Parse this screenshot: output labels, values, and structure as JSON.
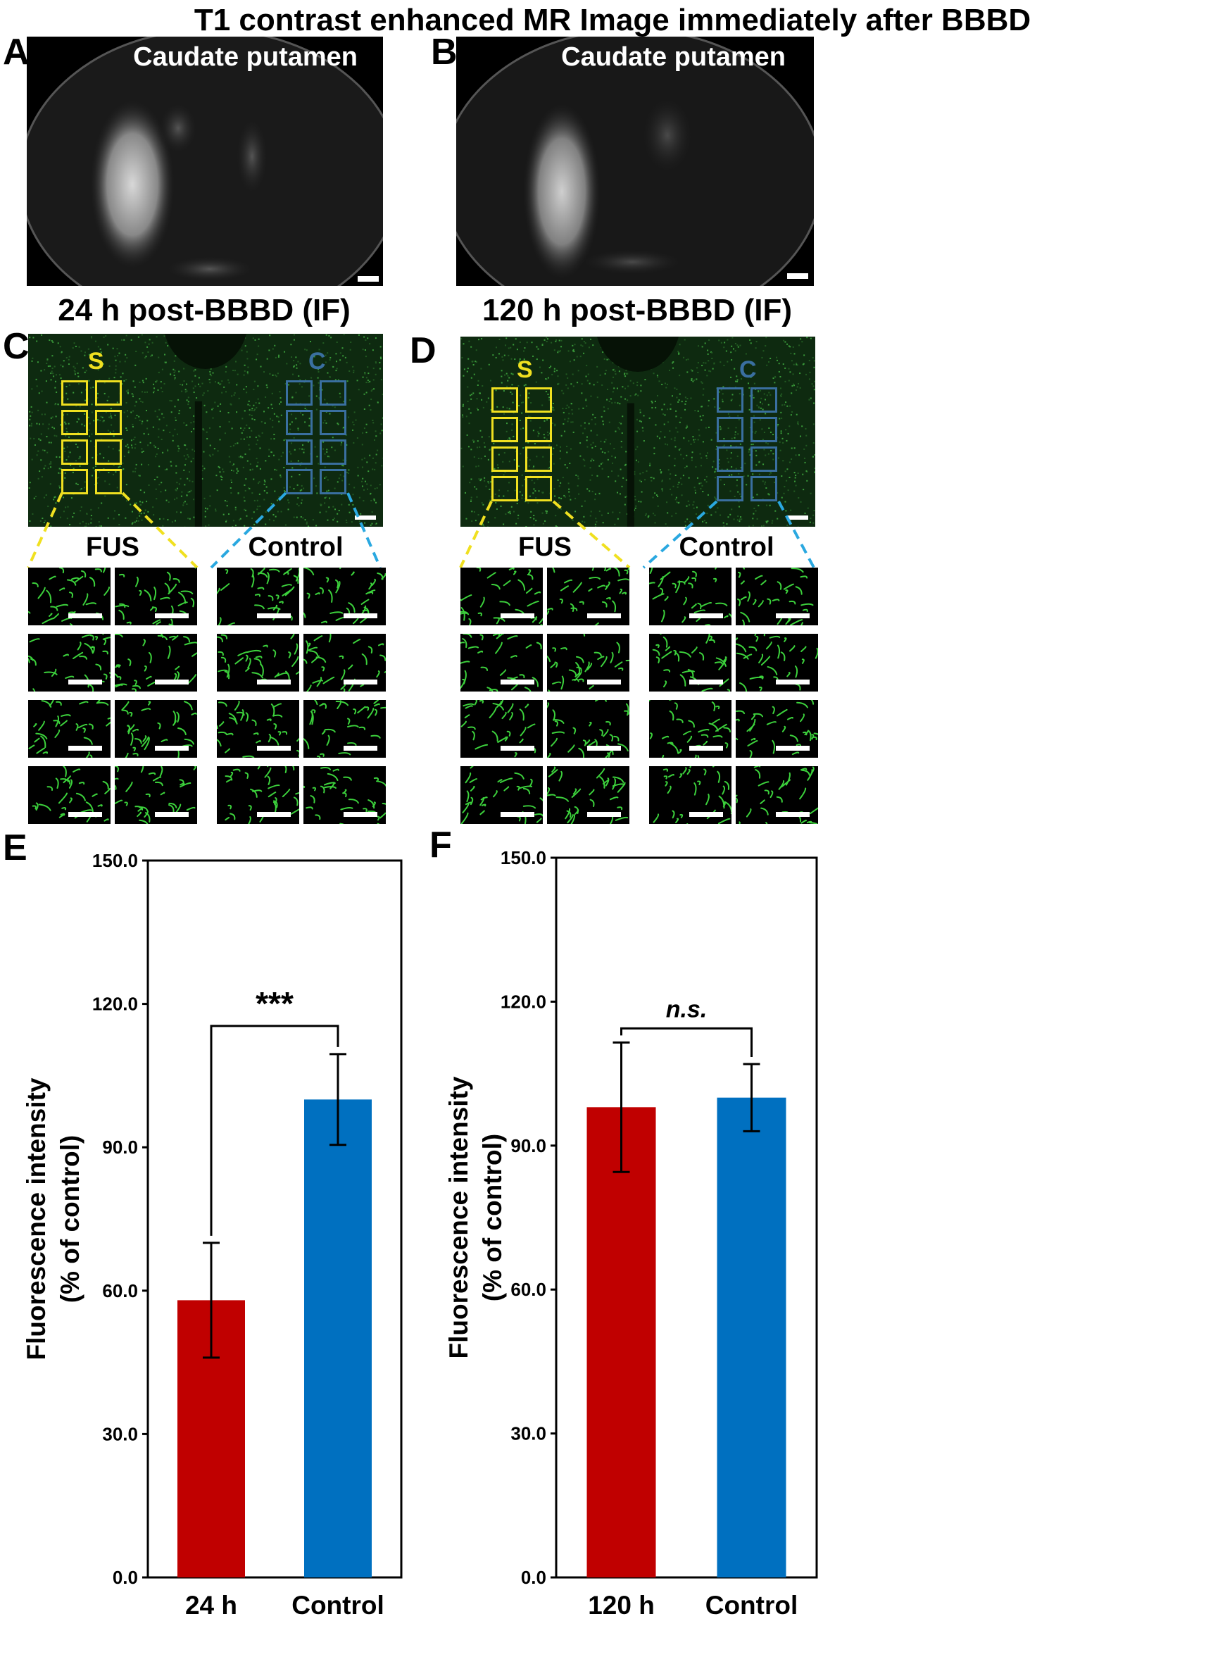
{
  "title": "T1 contrast enhanced MR Image immediately after BBBD",
  "panels": {
    "A": {
      "letter": "A",
      "mri_label": "Caudate putamen"
    },
    "B": {
      "letter": "B",
      "mri_label": "Caudate putamen"
    },
    "C": {
      "letter": "C",
      "subtitle": "24 h post-BBBD (IF)",
      "roi_s": "S",
      "roi_c": "C",
      "fus_label": "FUS",
      "control_label": "Control"
    },
    "D": {
      "letter": "D",
      "subtitle": "120 h post-BBBD (IF)",
      "roi_s": "S",
      "roi_c": "C",
      "fus_label": "FUS",
      "control_label": "Control"
    },
    "E": {
      "letter": "E"
    },
    "F": {
      "letter": "F"
    }
  },
  "colors": {
    "roi_s": "#f0e020",
    "roi_c": "#3a6fa0",
    "line_s": "#f0e020",
    "line_c": "#2aa8e0",
    "bar_red": "#c00000",
    "bar_blue": "#0070c0",
    "vessel": "#3cd13c"
  },
  "chart_data": [
    {
      "type": "bar",
      "panel": "E",
      "categories": [
        "24 h",
        "Control"
      ],
      "values": [
        58.0,
        100.0
      ],
      "errors": [
        12.0,
        9.5
      ],
      "colors": [
        "#c00000",
        "#0070c0"
      ],
      "ylabel": "Fluorescence intensity\n(% of control)",
      "ylim": [
        0,
        150
      ],
      "yticks": [
        "0.0",
        "30.0",
        "60.0",
        "90.0",
        "120.0",
        "150.0"
      ],
      "significance": "***"
    },
    {
      "type": "bar",
      "panel": "F",
      "categories": [
        "120 h",
        "Control"
      ],
      "values": [
        98.0,
        100.0
      ],
      "errors": [
        13.5,
        7.0
      ],
      "colors": [
        "#c00000",
        "#0070c0"
      ],
      "ylabel": "Fluorescence intensity\n(% of control)",
      "ylim": [
        0,
        150
      ],
      "yticks": [
        "0.0",
        "30.0",
        "60.0",
        "90.0",
        "120.0",
        "150.0"
      ],
      "significance": "n.s."
    }
  ]
}
